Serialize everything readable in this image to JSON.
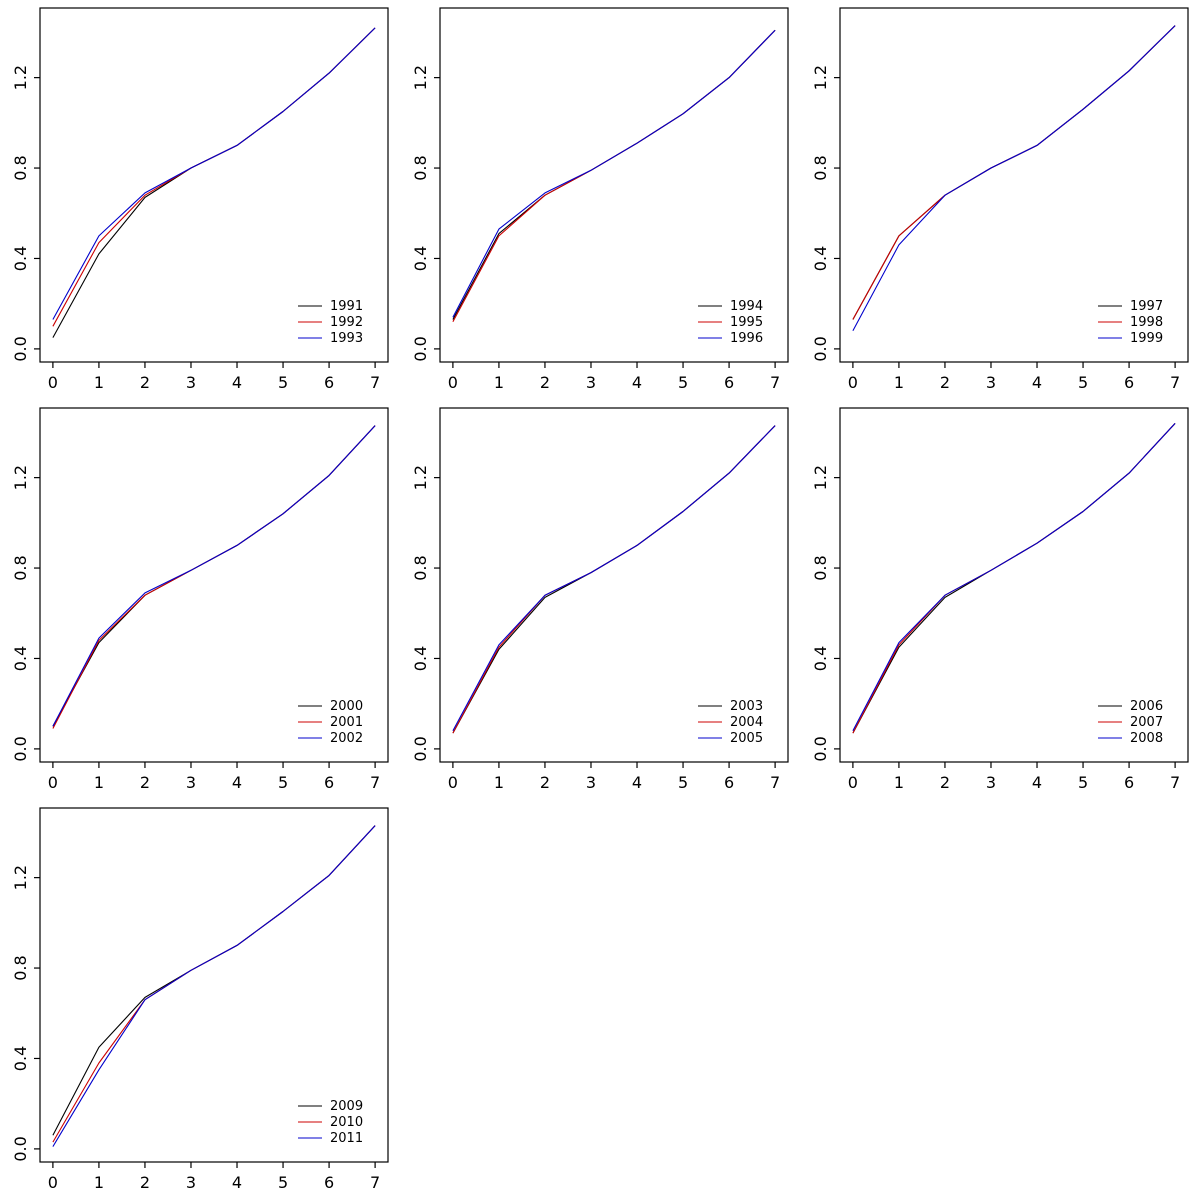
{
  "page": {
    "background": "#ffffff"
  },
  "colors": {
    "series_black": "#000000",
    "series_red": "#cc0000",
    "series_blue": "#0000cc",
    "axis": "#000000"
  },
  "chart_data": [
    {
      "type": "line",
      "title": "",
      "xlabel": "",
      "ylabel": "",
      "x": [
        0,
        1,
        2,
        3,
        4,
        5,
        6,
        7
      ],
      "xlim": [
        0,
        7
      ],
      "ylim": [
        0,
        1.45
      ],
      "xticks": [
        "0",
        "1",
        "2",
        "3",
        "4",
        "5",
        "6",
        "7"
      ],
      "yticks": [
        "0.0",
        "0.4",
        "0.8",
        "1.2"
      ],
      "grid": false,
      "legend_position": "bottom-right",
      "series": [
        {
          "name": "1991",
          "color": "#000000",
          "values": [
            0.05,
            0.42,
            0.67,
            0.8,
            0.9,
            1.05,
            1.22,
            1.42
          ]
        },
        {
          "name": "1992",
          "color": "#cc0000",
          "values": [
            0.1,
            0.47,
            0.68,
            0.8,
            0.9,
            1.05,
            1.22,
            1.42
          ]
        },
        {
          "name": "1993",
          "color": "#0000cc",
          "values": [
            0.13,
            0.5,
            0.69,
            0.8,
            0.9,
            1.05,
            1.22,
            1.42
          ]
        }
      ]
    },
    {
      "type": "line",
      "title": "",
      "xlabel": "",
      "ylabel": "",
      "x": [
        0,
        1,
        2,
        3,
        4,
        5,
        6,
        7
      ],
      "xlim": [
        0,
        7
      ],
      "ylim": [
        0,
        1.45
      ],
      "xticks": [
        "0",
        "1",
        "2",
        "3",
        "4",
        "5",
        "6",
        "7"
      ],
      "yticks": [
        "0.0",
        "0.4",
        "0.8",
        "1.2"
      ],
      "grid": false,
      "legend_position": "bottom-right",
      "series": [
        {
          "name": "1994",
          "color": "#000000",
          "values": [
            0.13,
            0.51,
            0.68,
            0.79,
            0.91,
            1.04,
            1.2,
            1.41
          ]
        },
        {
          "name": "1995",
          "color": "#cc0000",
          "values": [
            0.12,
            0.5,
            0.68,
            0.79,
            0.91,
            1.04,
            1.2,
            1.41
          ]
        },
        {
          "name": "1996",
          "color": "#0000cc",
          "values": [
            0.14,
            0.53,
            0.69,
            0.79,
            0.91,
            1.04,
            1.2,
            1.41
          ]
        }
      ]
    },
    {
      "type": "line",
      "title": "",
      "xlabel": "",
      "ylabel": "",
      "x": [
        0,
        1,
        2,
        3,
        4,
        5,
        6,
        7
      ],
      "xlim": [
        0,
        7
      ],
      "ylim": [
        0,
        1.45
      ],
      "xticks": [
        "0",
        "1",
        "2",
        "3",
        "4",
        "5",
        "6",
        "7"
      ],
      "yticks": [
        "0.0",
        "0.4",
        "0.8",
        "1.2"
      ],
      "grid": false,
      "legend_position": "bottom-right",
      "series": [
        {
          "name": "1997",
          "color": "#000000",
          "values": [
            0.13,
            0.5,
            0.68,
            0.8,
            0.9,
            1.06,
            1.23,
            1.43
          ]
        },
        {
          "name": "1998",
          "color": "#cc0000",
          "values": [
            0.13,
            0.5,
            0.68,
            0.8,
            0.9,
            1.06,
            1.23,
            1.43
          ]
        },
        {
          "name": "1999",
          "color": "#0000cc",
          "values": [
            0.08,
            0.46,
            0.68,
            0.8,
            0.9,
            1.06,
            1.23,
            1.43
          ]
        }
      ]
    },
    {
      "type": "line",
      "title": "",
      "xlabel": "",
      "ylabel": "",
      "x": [
        0,
        1,
        2,
        3,
        4,
        5,
        6,
        7
      ],
      "xlim": [
        0,
        7
      ],
      "ylim": [
        0,
        1.45
      ],
      "xticks": [
        "0",
        "1",
        "2",
        "3",
        "4",
        "5",
        "6",
        "7"
      ],
      "yticks": [
        "0.0",
        "0.4",
        "0.8",
        "1.2"
      ],
      "grid": false,
      "legend_position": "bottom-right",
      "series": [
        {
          "name": "2000",
          "color": "#000000",
          "values": [
            0.1,
            0.47,
            0.68,
            0.79,
            0.9,
            1.04,
            1.21,
            1.43
          ]
        },
        {
          "name": "2001",
          "color": "#cc0000",
          "values": [
            0.09,
            0.48,
            0.68,
            0.79,
            0.9,
            1.04,
            1.21,
            1.43
          ]
        },
        {
          "name": "2002",
          "color": "#0000cc",
          "values": [
            0.1,
            0.49,
            0.69,
            0.79,
            0.9,
            1.04,
            1.21,
            1.43
          ]
        }
      ]
    },
    {
      "type": "line",
      "title": "",
      "xlabel": "",
      "ylabel": "",
      "x": [
        0,
        1,
        2,
        3,
        4,
        5,
        6,
        7
      ],
      "xlim": [
        0,
        7
      ],
      "ylim": [
        0,
        1.45
      ],
      "xticks": [
        "0",
        "1",
        "2",
        "3",
        "4",
        "5",
        "6",
        "7"
      ],
      "yticks": [
        "0.0",
        "0.4",
        "0.8",
        "1.2"
      ],
      "grid": false,
      "legend_position": "bottom-right",
      "series": [
        {
          "name": "2003",
          "color": "#000000",
          "values": [
            0.07,
            0.44,
            0.67,
            0.78,
            0.9,
            1.05,
            1.22,
            1.43
          ]
        },
        {
          "name": "2004",
          "color": "#cc0000",
          "values": [
            0.07,
            0.45,
            0.68,
            0.78,
            0.9,
            1.05,
            1.22,
            1.43
          ]
        },
        {
          "name": "2005",
          "color": "#0000cc",
          "values": [
            0.08,
            0.46,
            0.68,
            0.78,
            0.9,
            1.05,
            1.22,
            1.43
          ]
        }
      ]
    },
    {
      "type": "line",
      "title": "",
      "xlabel": "",
      "ylabel": "",
      "x": [
        0,
        1,
        2,
        3,
        4,
        5,
        6,
        7
      ],
      "xlim": [
        0,
        7
      ],
      "ylim": [
        0,
        1.45
      ],
      "xticks": [
        "0",
        "1",
        "2",
        "3",
        "4",
        "5",
        "6",
        "7"
      ],
      "yticks": [
        "0.0",
        "0.4",
        "0.8",
        "1.2"
      ],
      "grid": false,
      "legend_position": "bottom-right",
      "series": [
        {
          "name": "2006",
          "color": "#000000",
          "values": [
            0.07,
            0.45,
            0.67,
            0.79,
            0.91,
            1.05,
            1.22,
            1.44
          ]
        },
        {
          "name": "2007",
          "color": "#cc0000",
          "values": [
            0.07,
            0.46,
            0.68,
            0.79,
            0.91,
            1.05,
            1.22,
            1.44
          ]
        },
        {
          "name": "2008",
          "color": "#0000cc",
          "values": [
            0.08,
            0.47,
            0.68,
            0.79,
            0.91,
            1.05,
            1.22,
            1.44
          ]
        }
      ]
    },
    {
      "type": "line",
      "title": "",
      "xlabel": "",
      "ylabel": "",
      "x": [
        0,
        1,
        2,
        3,
        4,
        5,
        6,
        7
      ],
      "xlim": [
        0,
        7
      ],
      "ylim": [
        0,
        1.45
      ],
      "xticks": [
        "0",
        "1",
        "2",
        "3",
        "4",
        "5",
        "6",
        "7"
      ],
      "yticks": [
        "0.0",
        "0.4",
        "0.8",
        "1.2"
      ],
      "grid": false,
      "legend_position": "bottom-right",
      "series": [
        {
          "name": "2009",
          "color": "#000000",
          "values": [
            0.06,
            0.45,
            0.67,
            0.79,
            0.9,
            1.05,
            1.21,
            1.43
          ]
        },
        {
          "name": "2010",
          "color": "#cc0000",
          "values": [
            0.03,
            0.38,
            0.66,
            0.79,
            0.9,
            1.05,
            1.21,
            1.43
          ]
        },
        {
          "name": "2011",
          "color": "#0000cc",
          "values": [
            0.01,
            0.35,
            0.66,
            0.79,
            0.9,
            1.05,
            1.21,
            1.43
          ]
        }
      ]
    }
  ]
}
